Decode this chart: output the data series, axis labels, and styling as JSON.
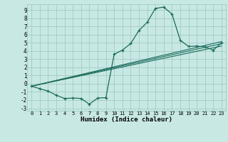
{
  "xlabel": "Humidex (Indice chaleur)",
  "bg_color": "#c8e8e4",
  "grid_color": "#a0ccc8",
  "line_color": "#1a6b5a",
  "xlim": [
    -0.5,
    23.5
  ],
  "ylim": [
    -3.3,
    9.7
  ],
  "xticks": [
    0,
    1,
    2,
    3,
    4,
    5,
    6,
    7,
    8,
    9,
    10,
    11,
    12,
    13,
    14,
    15,
    16,
    17,
    18,
    19,
    20,
    21,
    22,
    23
  ],
  "yticks": [
    -3,
    -2,
    -1,
    0,
    1,
    2,
    3,
    4,
    5,
    6,
    7,
    8,
    9
  ],
  "main_x": [
    0,
    1,
    2,
    3,
    4,
    5,
    6,
    7,
    8,
    9,
    10,
    11,
    12,
    13,
    14,
    15,
    16,
    17,
    18,
    19,
    20,
    21,
    22,
    23
  ],
  "main_y": [
    -0.3,
    -0.6,
    -0.9,
    -1.4,
    -1.8,
    -1.75,
    -1.8,
    -2.5,
    -1.75,
    -1.7,
    3.6,
    4.1,
    4.9,
    6.5,
    7.5,
    9.2,
    9.35,
    8.5,
    5.3,
    4.55,
    4.6,
    4.5,
    4.1,
    5.0
  ],
  "lin1_end": 4.6,
  "lin2_end": 4.9,
  "lin3_end": 5.15,
  "lin_start": -0.3
}
